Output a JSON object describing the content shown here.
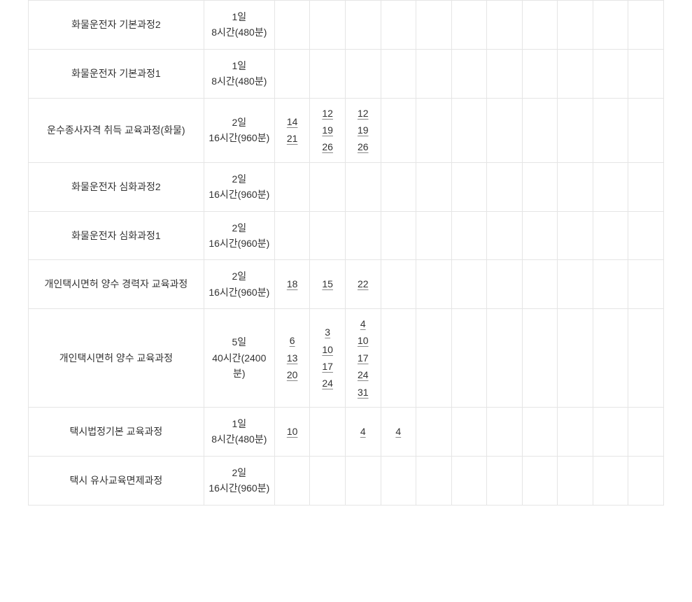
{
  "colors": {
    "border": "#e5e5e5",
    "text": "#333333",
    "background": "#ffffff",
    "underline": "#888888"
  },
  "typography": {
    "font_size": 14,
    "line_height": 1.6
  },
  "table": {
    "column_widths": {
      "course_name": 248,
      "duration": 100,
      "month": 50
    },
    "month_columns": 11,
    "rows": [
      {
        "course": "화물운전자 기본과정2",
        "duration": "1일\n8시간(480분)",
        "months": [
          [],
          [],
          [],
          [],
          [],
          [],
          [],
          [],
          [],
          [],
          []
        ]
      },
      {
        "course": "화물운전자 기본과정1",
        "duration": "1일\n8시간(480분)",
        "months": [
          [],
          [],
          [],
          [],
          [],
          [],
          [],
          [],
          [],
          [],
          []
        ]
      },
      {
        "course": "운수종사자격 취득 교육과정(화물)",
        "duration": "2일\n16시간(960분)",
        "months": [
          [
            "14",
            "21"
          ],
          [
            "12",
            "19",
            "26"
          ],
          [
            "12",
            "19",
            "26"
          ],
          [],
          [],
          [],
          [],
          [],
          [],
          [],
          []
        ]
      },
      {
        "course": "화물운전자 심화과정2",
        "duration": "2일\n16시간(960분)",
        "months": [
          [],
          [],
          [],
          [],
          [],
          [],
          [],
          [],
          [],
          [],
          []
        ]
      },
      {
        "course": "화물운전자 심화과정1",
        "duration": "2일\n16시간(960분)",
        "months": [
          [],
          [],
          [],
          [],
          [],
          [],
          [],
          [],
          [],
          [],
          []
        ]
      },
      {
        "course": "개인택시면허 양수 경력자 교육과정",
        "duration": "2일\n16시간(960분)",
        "months": [
          [
            "18"
          ],
          [
            "15"
          ],
          [
            "22"
          ],
          [],
          [],
          [],
          [],
          [],
          [],
          [],
          []
        ]
      },
      {
        "course": "개인택시면허 양수 교육과정",
        "duration": "5일\n40시간(2400분)",
        "months": [
          [
            "6",
            "13",
            "20"
          ],
          [
            "3",
            "10",
            "17",
            "24"
          ],
          [
            "4",
            "10",
            "17",
            "24",
            "31"
          ],
          [],
          [],
          [],
          [],
          [],
          [],
          [],
          []
        ]
      },
      {
        "course": "택시법정기본 교육과정",
        "duration": "1일\n8시간(480분)",
        "months": [
          [
            "10"
          ],
          [],
          [
            "4"
          ],
          [
            "4"
          ],
          [],
          [],
          [],
          [],
          [],
          [],
          []
        ]
      },
      {
        "course": "택시 유사교육면제과정",
        "duration": "2일\n16시간(960분)",
        "months": [
          [],
          [],
          [],
          [],
          [],
          [],
          [],
          [],
          [],
          [],
          []
        ]
      }
    ]
  }
}
